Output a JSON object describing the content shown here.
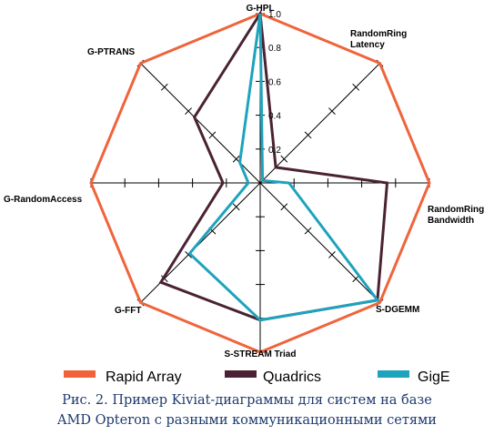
{
  "chart_data": {
    "type": "radar",
    "axes": [
      "G-HPL",
      "RandomRing Latency",
      "RandomRing Bandwidth",
      "S-DGEMM",
      "S-STREAM Triad",
      "G-FFT",
      "G-RandomAccess",
      "G-PTRANS"
    ],
    "axis_label_lines": [
      [
        "G-HPL"
      ],
      [
        "RandomRing",
        "Latency"
      ],
      [
        "RandomRing",
        "Bandwidth"
      ],
      [
        "S-DGEMM"
      ],
      [
        "S-STREAM Triad"
      ],
      [
        "G-FFT"
      ],
      [
        "G-RandomAccess"
      ],
      [
        "G-PTRANS"
      ]
    ],
    "range": [
      0,
      1
    ],
    "tick_labels": [
      "0.2",
      "0.4",
      "0.6",
      "0.8",
      "1.0"
    ],
    "series": [
      {
        "name": "Rapid Array",
        "color": "#f0643c",
        "values": [
          1.0,
          1.0,
          1.0,
          1.0,
          1.0,
          1.0,
          1.0,
          1.0
        ]
      },
      {
        "name": "Quadrics",
        "color": "#4a2233",
        "values": [
          1.0,
          0.13,
          0.75,
          0.98,
          0.81,
          0.83,
          0.22,
          0.55
        ]
      },
      {
        "name": "GigE",
        "color": "#1ea3bc",
        "values": [
          1.0,
          0.02,
          0.17,
          0.98,
          0.81,
          0.59,
          0.07,
          0.17
        ]
      }
    ]
  },
  "caption": {
    "line1": "Рис. 2. Пример Kiviat-диаграммы для систем на базе",
    "line2": "AMD Opteron с разными  коммуникационными сетями"
  }
}
